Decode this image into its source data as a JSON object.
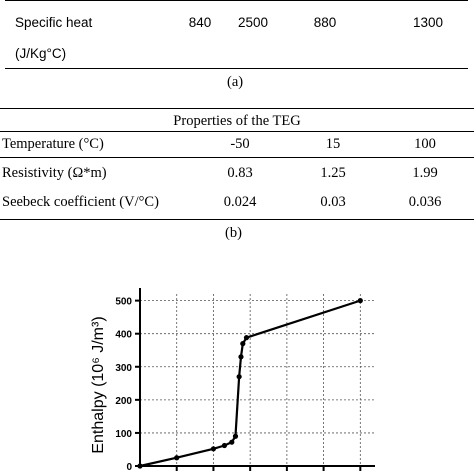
{
  "table_a": {
    "row_label_line1": "Specific heat",
    "row_label_line2": "(J/Kg°C)",
    "values": [
      "840",
      "2500",
      "880",
      "1300"
    ],
    "caption": "(a)"
  },
  "table_b": {
    "title": "Properties of the TEG",
    "rows": [
      {
        "label": "Temperature (°C)",
        "values": [
          "-50",
          "15",
          "100"
        ]
      },
      {
        "label": "Resistivity (Ω*m)",
        "values": [
          "0.83",
          "1.25",
          "1.99"
        ]
      },
      {
        "label": "Seebeck coefficient (V/°C)",
        "values": [
          "0.024",
          "0.03",
          "0.036"
        ]
      }
    ],
    "caption": "(b)"
  },
  "chart_data": {
    "type": "line",
    "title": "",
    "ylabel": "Enthalpy (10⁶ J/m³)",
    "xlabel": "",
    "ylim": [
      0,
      520
    ],
    "yticks": [
      "0",
      "100",
      "200",
      "300",
      "400",
      "500"
    ],
    "grid": true,
    "series": [
      {
        "values": [
          {
            "x": 0,
            "y": 0
          },
          {
            "x": 10,
            "y": 25
          },
          {
            "x": 20,
            "y": 52
          },
          {
            "x": 23,
            "y": 62
          },
          {
            "x": 25,
            "y": 72
          },
          {
            "x": 26,
            "y": 90
          },
          {
            "x": 27,
            "y": 270
          },
          {
            "x": 27.5,
            "y": 330
          },
          {
            "x": 28,
            "y": 370
          },
          {
            "x": 29,
            "y": 388
          },
          {
            "x": 60,
            "y": 500
          }
        ]
      }
    ]
  }
}
